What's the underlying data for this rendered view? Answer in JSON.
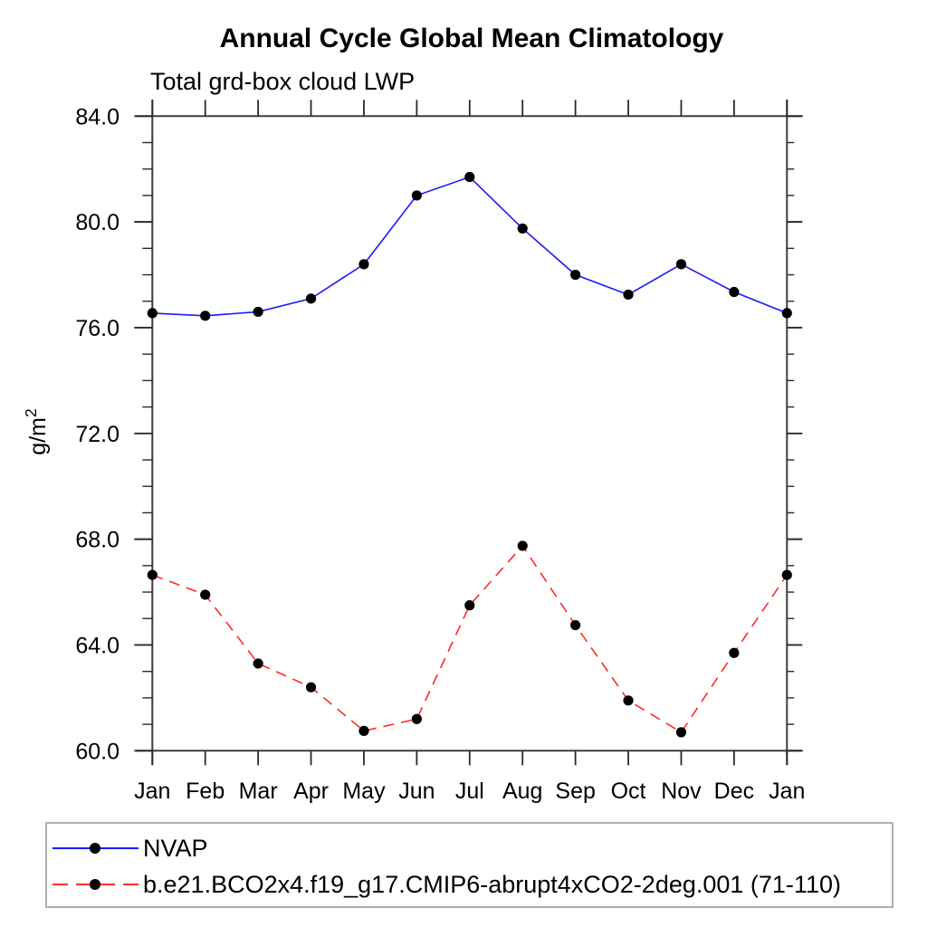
{
  "title": "Annual Cycle Global Mean Climatology",
  "subtitle": "Total grd-box cloud LWP",
  "chart_data": {
    "type": "line",
    "categories": [
      "Jan",
      "Feb",
      "Mar",
      "Apr",
      "May",
      "Jun",
      "Jul",
      "Aug",
      "Sep",
      "Oct",
      "Nov",
      "Dec",
      "Jan"
    ],
    "xlabel": "",
    "ylabel": "g/m²",
    "ylim": [
      60.0,
      84.0
    ],
    "ytick_step": 4,
    "yminor_step": 1,
    "ytick_labels": [
      "60.0",
      "64.0",
      "68.0",
      "72.0",
      "76.0",
      "80.0",
      "84.0"
    ],
    "grid": false,
    "legend_position": "bottom",
    "series": [
      {
        "name": "NVAP",
        "line_style": "solid",
        "color": "#1a1aff",
        "marker": "filled-circle",
        "marker_color": "#000000",
        "values": [
          76.55,
          76.45,
          76.6,
          77.1,
          78.4,
          81.0,
          81.7,
          79.75,
          78.0,
          77.25,
          78.4,
          77.35,
          76.55
        ]
      },
      {
        "name": "b.e21.BCO2x4.f19_g17.CMIP6-abrupt4xCO2-2deg.001 (71-110)",
        "line_style": "dashed",
        "color": "#ff2a2a",
        "marker": "filled-circle",
        "marker_color": "#000000",
        "values": [
          66.65,
          65.9,
          63.3,
          62.4,
          60.75,
          61.2,
          65.5,
          67.75,
          64.75,
          61.9,
          60.7,
          63.7,
          66.65
        ]
      }
    ],
    "colors": {
      "axis": "#3d3d3d",
      "tick": "#2a2a2a",
      "text": "#000000",
      "legend_border": "#b0b0b0"
    }
  }
}
